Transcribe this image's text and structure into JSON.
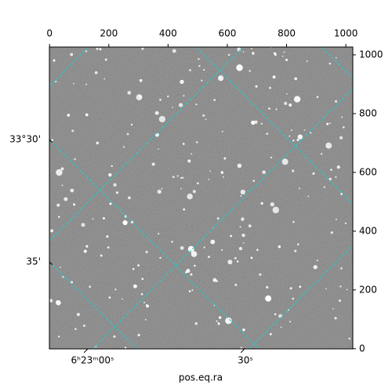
{
  "chart_data": {
    "type": "image",
    "xlabel": "pos.eq.ra",
    "xlim": [
      -0.5,
      1023.5
    ],
    "xticks": [
      0,
      200,
      400,
      600,
      800,
      1000
    ],
    "ylim": [
      -0.5,
      1026.5
    ],
    "yticks": [
      0,
      200,
      400,
      600,
      800,
      1000
    ],
    "ra_ticks": [
      "6ʰ23ᵐ00ˢ",
      "30ˢ"
    ],
    "dec_ticks": [
      "33°30'",
      "35'"
    ],
    "grid": true,
    "grid_color": "#22cccc"
  }
}
